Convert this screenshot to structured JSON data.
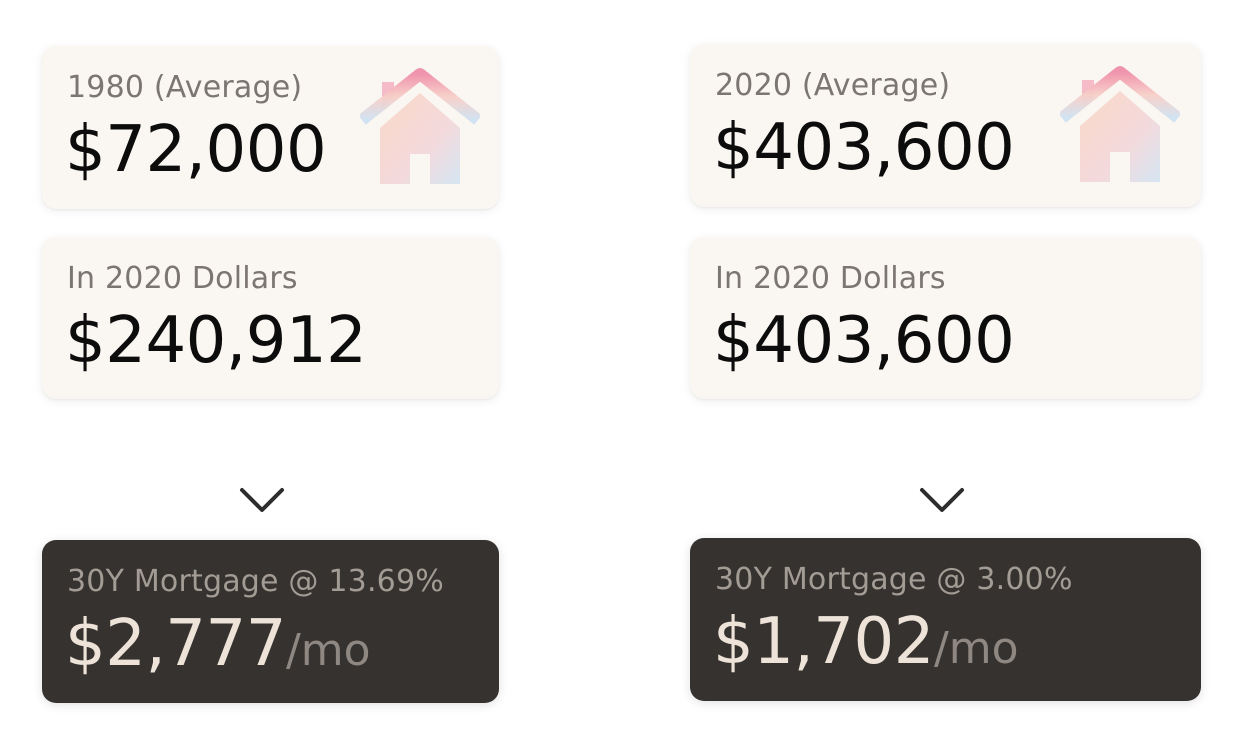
{
  "left": {
    "year_label": "1980 (Average)",
    "year_price": "$72,000",
    "adjusted_label": "In 2020 Dollars",
    "adjusted_price": "$240,912",
    "mortgage_label": "30Y Mortgage @ 13.69%",
    "mortgage_payment": "$2,777",
    "mortgage_unit": "/mo"
  },
  "right": {
    "year_label": "2020 (Average)",
    "year_price": "$403,600",
    "adjusted_label": "In 2020 Dollars",
    "adjusted_price": "$403,600",
    "mortgage_label": "30Y Mortgage @ 3.00%",
    "mortgage_payment": "$1,702",
    "mortgage_unit": "/mo"
  },
  "icons": {
    "house": "house-icon",
    "arrow": "arrow-down-icon"
  },
  "colors": {
    "card_light": "#faf7f2",
    "card_dark": "#36322f",
    "text_dark": "#0c0c0c",
    "text_muted": "#7c7672",
    "text_light": "#eee3d8"
  }
}
